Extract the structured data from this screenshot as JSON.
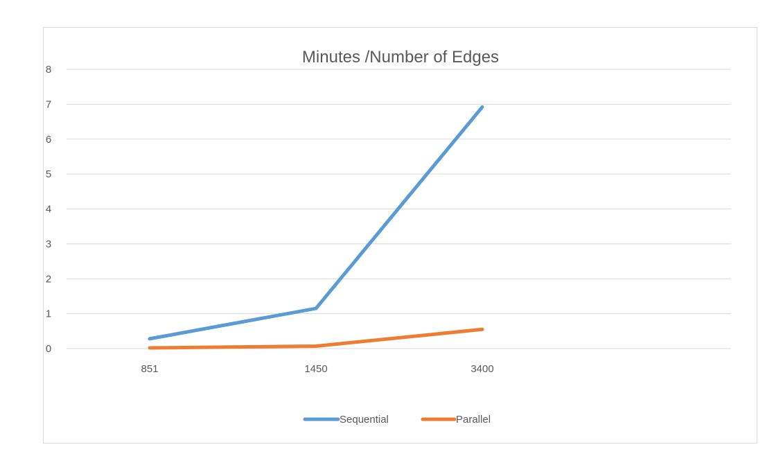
{
  "chart_data": {
    "type": "line",
    "title": "Minutes /Number of Edges",
    "categories": [
      "851",
      "1450",
      "3400"
    ],
    "y_ticks": [
      "0",
      "1",
      "2",
      "3",
      "4",
      "5",
      "6",
      "7",
      "8"
    ],
    "ylim": [
      0,
      8
    ],
    "grid": true,
    "legend_position": "bottom",
    "series": [
      {
        "name": "Sequential",
        "values": [
          0.28,
          1.15,
          6.92
        ],
        "color": "#5b9bd5"
      },
      {
        "name": "Parallel",
        "values": [
          0.02,
          0.07,
          0.55
        ],
        "color": "#ed7d31"
      }
    ]
  }
}
